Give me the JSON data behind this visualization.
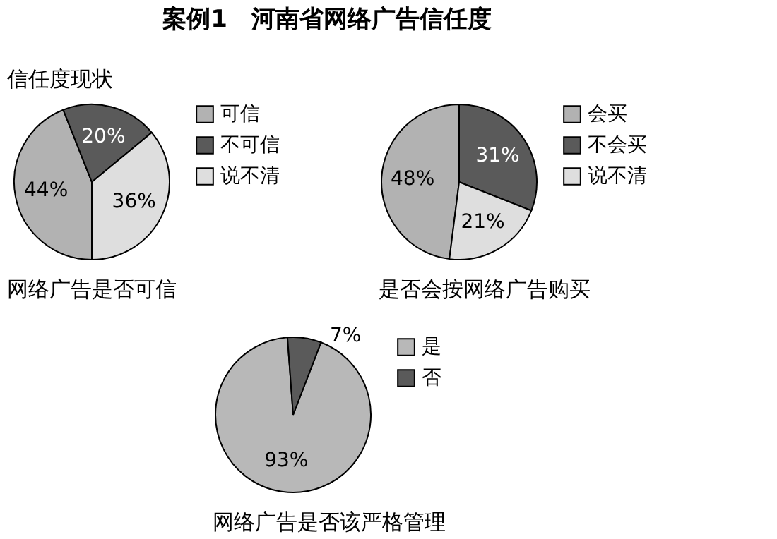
{
  "chart_data": [
    {
      "type": "pie",
      "title": "案例1　河南省网络广告信任度",
      "subtitle": "信任度现状",
      "annotations": [
        "网络广告是否可信"
      ],
      "categories": [
        "可信",
        "不可信",
        "说不清"
      ],
      "values": [
        44,
        20,
        36
      ],
      "colors": [
        "#b2b2b2",
        "#5a5a5a",
        "#dedede"
      ],
      "value_labels": [
        "44%",
        "20%",
        "36%"
      ],
      "legend": "right"
    },
    {
      "type": "pie",
      "annotations": [
        "是否会按网络广告购买"
      ],
      "categories": [
        "会买",
        "不会买",
        "说不清"
      ],
      "values": [
        48,
        31,
        21
      ],
      "colors": [
        "#b2b2b2",
        "#5a5a5a",
        "#dedede"
      ],
      "value_labels": [
        "48%",
        "31%",
        "21%"
      ],
      "legend": "right"
    },
    {
      "type": "pie",
      "annotations": [
        "网络广告是否该严格管理"
      ],
      "categories": [
        "是",
        "否"
      ],
      "values": [
        93,
        7
      ],
      "colors": [
        "#b8b8b8",
        "#5a5a5a"
      ],
      "value_labels": [
        "93%",
        "7%"
      ],
      "legend": "right"
    }
  ]
}
